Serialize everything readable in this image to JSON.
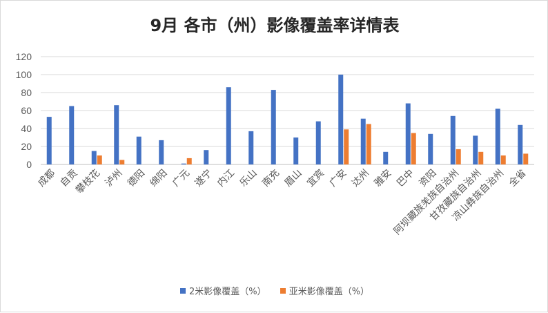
{
  "chart_data": {
    "type": "bar",
    "title": "9月 各市（州）影像覆盖率详情表",
    "categories": [
      "成都",
      "自贡",
      "攀枝花",
      "泸州",
      "德阳",
      "绵阳",
      "广元",
      "遂宁",
      "内江",
      "乐山",
      "南充",
      "眉山",
      "宜宾",
      "广安",
      "达州",
      "雅安",
      "巴中",
      "资阳",
      "阿坝藏族羌族自治州",
      "甘孜藏族自治州",
      "凉山彝族自治州",
      "全省"
    ],
    "series": [
      {
        "name": "2米影像覆盖（%）",
        "color": "#4472c4",
        "values": [
          53,
          65,
          15,
          66,
          31,
          27,
          1,
          16,
          86,
          37,
          83,
          30,
          48,
          100,
          51,
          14,
          68,
          34,
          54,
          32,
          62,
          44
        ]
      },
      {
        "name": "亚米影像覆盖（%）",
        "color": "#ed7d31",
        "values": [
          0,
          0,
          10,
          5,
          0,
          0,
          7,
          0,
          0,
          0,
          0,
          0,
          0,
          39,
          45,
          0,
          35,
          0,
          17,
          14,
          10,
          12
        ]
      }
    ],
    "yticks": [
      "0",
      "20",
      "40",
      "60",
      "80",
      "100",
      "120"
    ],
    "ylim": [
      0,
      120
    ],
    "grid": true,
    "legend_position": "bottom"
  }
}
